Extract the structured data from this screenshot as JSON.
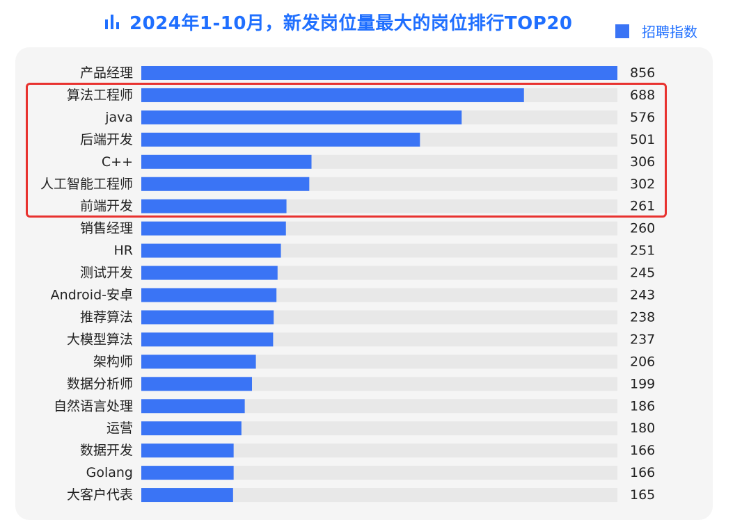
{
  "title": "2024年1-10月，新发岗位量最大的岗位排行TOP20",
  "legend": {
    "label": "招聘指数",
    "color": "#3a74f5"
  },
  "colors": {
    "title": "#1f6fff",
    "bar": "#3a74f5",
    "track": "#e8e8e8",
    "highlight": "#e8322f",
    "panel": "#f5f5f5"
  },
  "chart_data": {
    "type": "bar",
    "orientation": "horizontal",
    "categories": [
      "产品经理",
      "算法工程师",
      "java",
      "后端开发",
      "C++",
      "人工智能工程师",
      "前端开发",
      "销售经理",
      "HR",
      "测试开发",
      "Android-安卓",
      "推荐算法",
      "大模型算法",
      "架构师",
      "数据分析师",
      "自然语言处理",
      "运营",
      "数据开发",
      "Golang",
      "大客户代表"
    ],
    "series": [
      {
        "name": "招聘指数",
        "values": [
          856,
          688,
          576,
          501,
          306,
          302,
          261,
          260,
          251,
          245,
          243,
          238,
          237,
          206,
          199,
          186,
          180,
          166,
          166,
          165
        ]
      }
    ],
    "xlim": [
      0,
      856
    ],
    "grid": false,
    "legend_position": "top-right",
    "highlighted_categories": [
      "算法工程师",
      "java",
      "后端开发",
      "C++",
      "人工智能工程师",
      "前端开发"
    ]
  }
}
